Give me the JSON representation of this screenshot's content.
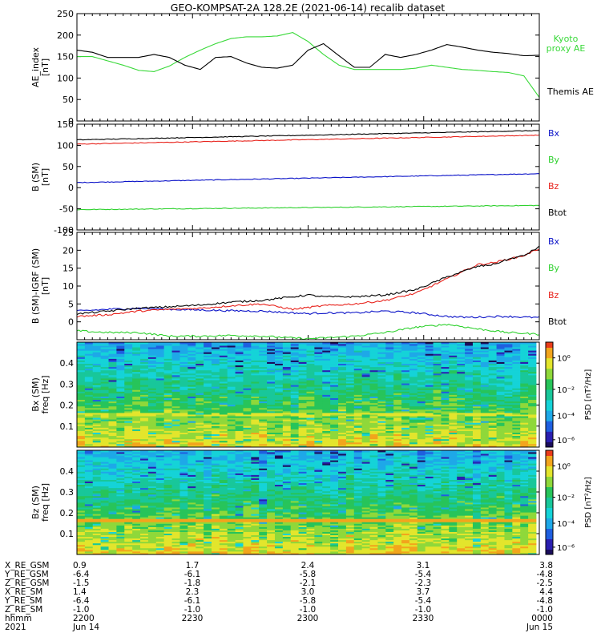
{
  "title": "GEO-KOMPSAT-2A 128.2E (2021-06-14) recalib dataset",
  "colors": {
    "black": "#000000",
    "red": "#e8231c",
    "green": "#2fd12f",
    "blue": "#0a12c8",
    "kyoto": "#39d939"
  },
  "chart_data": [
    {
      "type": "line",
      "ylabel": "AE_index\n[nT]",
      "ylim": [
        0,
        250
      ],
      "yticks": [
        0,
        50,
        100,
        150,
        200,
        250
      ],
      "x": [
        0,
        4,
        8,
        12,
        16,
        20,
        24,
        28,
        32,
        36,
        40,
        44,
        48,
        52,
        56,
        60,
        64,
        68,
        72,
        76,
        80,
        84,
        88,
        92,
        96,
        100,
        104,
        108,
        112,
        116,
        120
      ],
      "series": [
        {
          "name": "Kyoto\nproxy AE",
          "color": "#39d939",
          "values": [
            150,
            150,
            140,
            130,
            118,
            115,
            128,
            148,
            165,
            180,
            192,
            196,
            196,
            198,
            206,
            185,
            155,
            130,
            120,
            120,
            120,
            120,
            123,
            130,
            125,
            120,
            118,
            115,
            113,
            105,
            55
          ]
        },
        {
          "name": "Themis AE",
          "color": "#000000",
          "values": [
            165,
            160,
            148,
            148,
            148,
            155,
            148,
            130,
            120,
            148,
            150,
            135,
            125,
            123,
            130,
            165,
            180,
            152,
            125,
            125,
            155,
            148,
            155,
            165,
            178,
            172,
            165,
            160,
            157,
            152,
            153
          ]
        }
      ]
    },
    {
      "type": "line",
      "ylabel": "B (SM)\n[nT]",
      "ylim": [
        -100,
        150
      ],
      "yticks": [
        -100,
        -50,
        0,
        50,
        100,
        150
      ],
      "x": [
        0,
        120
      ],
      "series": [
        {
          "name": "Bx",
          "color": "#0a12c8",
          "values": [
            12,
            33
          ]
        },
        {
          "name": "By",
          "color": "#2fd12f",
          "values": [
            -52,
            -42
          ]
        },
        {
          "name": "Bz",
          "color": "#e8231c",
          "values": [
            103,
            124
          ]
        },
        {
          "name": "Btot",
          "color": "#000000",
          "values": [
            113,
            135
          ]
        }
      ]
    },
    {
      "type": "line",
      "ylabel": "B (SM)-IGRF (SM)\n[nT]",
      "ylim": [
        -5,
        25
      ],
      "yticks": [
        0,
        5,
        10,
        15,
        20,
        25
      ],
      "x": [
        0,
        8,
        16,
        24,
        32,
        40,
        48,
        56,
        60,
        64,
        72,
        80,
        88,
        96,
        100,
        104,
        108,
        112,
        116,
        120
      ],
      "series": [
        {
          "name": "Bx",
          "color": "#0a12c8",
          "values": [
            3,
            3.5,
            3.8,
            3.5,
            3.3,
            3.1,
            3,
            2.5,
            2.3,
            2.5,
            2.5,
            3,
            2.5,
            1.5,
            1.3,
            1.3,
            1.5,
            1.5,
            1.3,
            1.2
          ]
        },
        {
          "name": "By",
          "color": "#2fd12f",
          "values": [
            -2.5,
            -3,
            -3,
            -4,
            -4,
            -3.8,
            -4,
            -4.5,
            -4.7,
            -4.5,
            -4,
            -3,
            -1.5,
            -0.7,
            -1.3,
            -2,
            -2.5,
            -3,
            -3.2,
            -3.5
          ]
        },
        {
          "name": "Bz",
          "color": "#e8231c",
          "values": [
            1.5,
            2,
            3,
            3.5,
            3.8,
            4.5,
            5,
            3.5,
            4,
            4.5,
            5,
            6,
            8,
            12,
            14,
            16,
            16.5,
            17.5,
            18.5,
            20.5
          ]
        },
        {
          "name": "Btot",
          "color": "#000000",
          "values": [
            2.2,
            3,
            3.8,
            4.2,
            4.7,
            5.5,
            6,
            7,
            7.5,
            7,
            7,
            7.5,
            9,
            12.5,
            14,
            15.5,
            16,
            17.5,
            18.5,
            21
          ]
        }
      ]
    },
    {
      "type": "heatmap",
      "ylabel": "Bx (SM)\nfreq [Hz]",
      "ylim": [
        0,
        0.5
      ],
      "yticks": [
        0.1,
        0.2,
        0.3,
        0.4
      ],
      "colorbar": {
        "label": "PSD [nT²/Hz]",
        "ticks": [
          "10⁰",
          "10⁻²",
          "10⁻⁴",
          "10⁻⁶"
        ]
      }
    },
    {
      "type": "heatmap",
      "ylabel": "Bz (SM)\nfreq [Hz]",
      "ylim": [
        0,
        0.5
      ],
      "yticks": [
        0.1,
        0.2,
        0.3,
        0.4
      ],
      "colorbar": {
        "label": "PSD [nT²/Hz]",
        "ticks": [
          "10⁰",
          "10⁻²",
          "10⁻⁴",
          "10⁻⁶"
        ]
      }
    }
  ],
  "footer": {
    "labels": [
      "X_RE_GSM",
      "Y_RE_GSM",
      "Z_RE_GSM",
      "X_RE_SM",
      "Y_RE_SM",
      "Z_RE_SM",
      "hhmm",
      "2021"
    ],
    "columns": [
      [
        "0.9",
        "-6.4",
        "-1.5",
        "1.4",
        "-6.4",
        "-1.0",
        "2200",
        "Jun 14"
      ],
      [
        "1.7",
        "-6.1",
        "-1.8",
        "2.3",
        "-6.1",
        "-1.0",
        "2230",
        ""
      ],
      [
        "2.4",
        "-5.8",
        "-2.1",
        "3.0",
        "-5.8",
        "-1.0",
        "2300",
        ""
      ],
      [
        "3.1",
        "-5.4",
        "-2.3",
        "3.7",
        "-5.4",
        "-1.0",
        "2330",
        ""
      ],
      [
        "3.8",
        "-4.8",
        "-2.5",
        "4.4",
        "-4.8",
        "-1.0",
        "0000",
        "Jun 15"
      ]
    ]
  }
}
